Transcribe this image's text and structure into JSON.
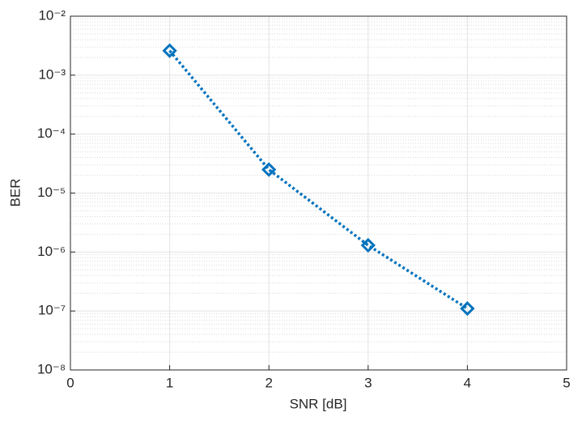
{
  "chart_data": {
    "type": "line",
    "xlabel": "SNR [dB]",
    "ylabel": "BER",
    "x": [
      1,
      2,
      3,
      4
    ],
    "values": [
      0.0026,
      2.5e-05,
      1.3e-06,
      1.1e-07
    ],
    "color": "#0072bd",
    "line_style": "dotted",
    "marker": "diamond",
    "xlim": [
      0,
      5
    ],
    "xticks": [
      0,
      1,
      2,
      3,
      4,
      5
    ],
    "yscale": "log",
    "ylim": [
      1e-08,
      0.01
    ],
    "yticks": [
      {
        "value": 1e-08,
        "label": "10⁻⁸"
      },
      {
        "value": 1e-07,
        "label": "10⁻⁷"
      },
      {
        "value": 1e-06,
        "label": "10⁻⁶"
      },
      {
        "value": 1e-05,
        "label": "10⁻⁵"
      },
      {
        "value": 0.0001,
        "label": "10⁻⁴"
      },
      {
        "value": 0.001,
        "label": "10⁻³"
      },
      {
        "value": 0.01,
        "label": "10⁻²"
      }
    ],
    "grid": true,
    "minor_grid": true
  }
}
